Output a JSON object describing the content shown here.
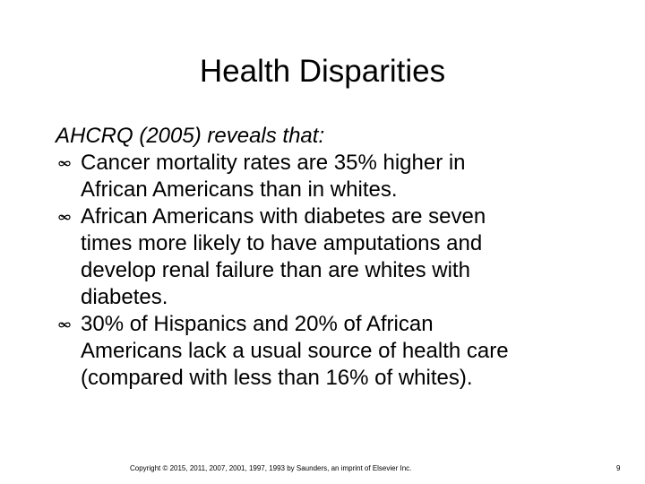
{
  "slide": {
    "title": "Health Disparities",
    "intro": "AHCRQ (2005) reveals that:",
    "bullet_icon": "infinity-like-bullet-icon",
    "bullets": [
      {
        "lines": [
          "Cancer mortality rates are 35% higher in",
          "African Americans than in whites."
        ]
      },
      {
        "lines": [
          "African Americans with diabetes are seven",
          "times more likely to have amputations and",
          "develop renal failure than are whites with",
          "diabetes."
        ]
      },
      {
        "lines": [
          "30% of Hispanics and 20% of African",
          "Americans lack a usual source of health care",
          "(compared with less than 16% of whites)."
        ]
      }
    ],
    "footer": "Copyright © 2015, 2011, 2007, 2001, 1997, 1993 by Saunders, an imprint of Elsevier Inc.",
    "page_number": "9"
  }
}
